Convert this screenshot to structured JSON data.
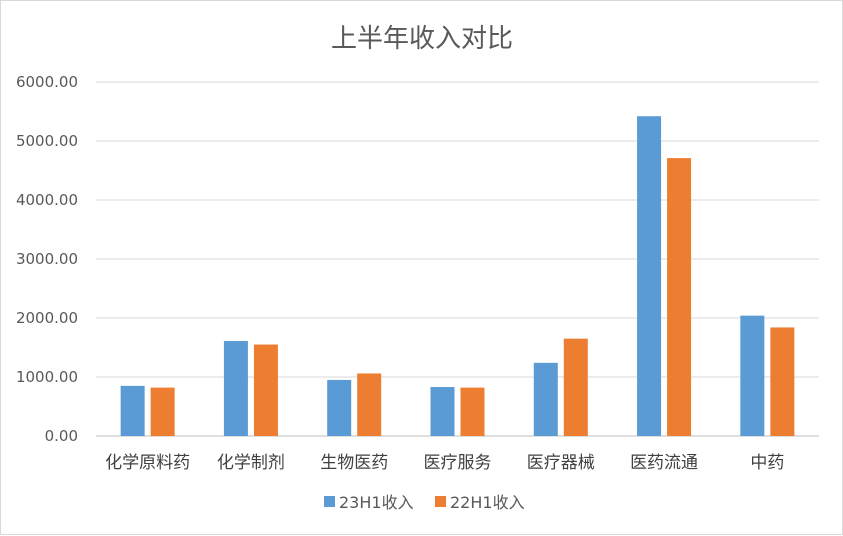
{
  "chart_data": {
    "type": "bar",
    "title": "上半年收入对比",
    "xlabel": "",
    "ylabel": "",
    "categories": [
      "化学原料药",
      "化学制剂",
      "生物医药",
      "医疗服务",
      "医疗器械",
      "医药流通",
      "中药"
    ],
    "series": [
      {
        "name": "23H1收入",
        "color": "#5b9bd5",
        "values": [
          850,
          1610,
          950,
          830,
          1240,
          5420,
          2040
        ]
      },
      {
        "name": "22H1收入",
        "color": "#ed7d31",
        "values": [
          820,
          1550,
          1060,
          820,
          1650,
          4710,
          1840
        ]
      }
    ],
    "ylim": [
      0,
      6000
    ],
    "y_ticks": [
      "0.00",
      "1000.00",
      "2000.00",
      "3000.00",
      "4000.00",
      "5000.00",
      "6000.00"
    ],
    "grid": true,
    "legend_position": "bottom"
  }
}
